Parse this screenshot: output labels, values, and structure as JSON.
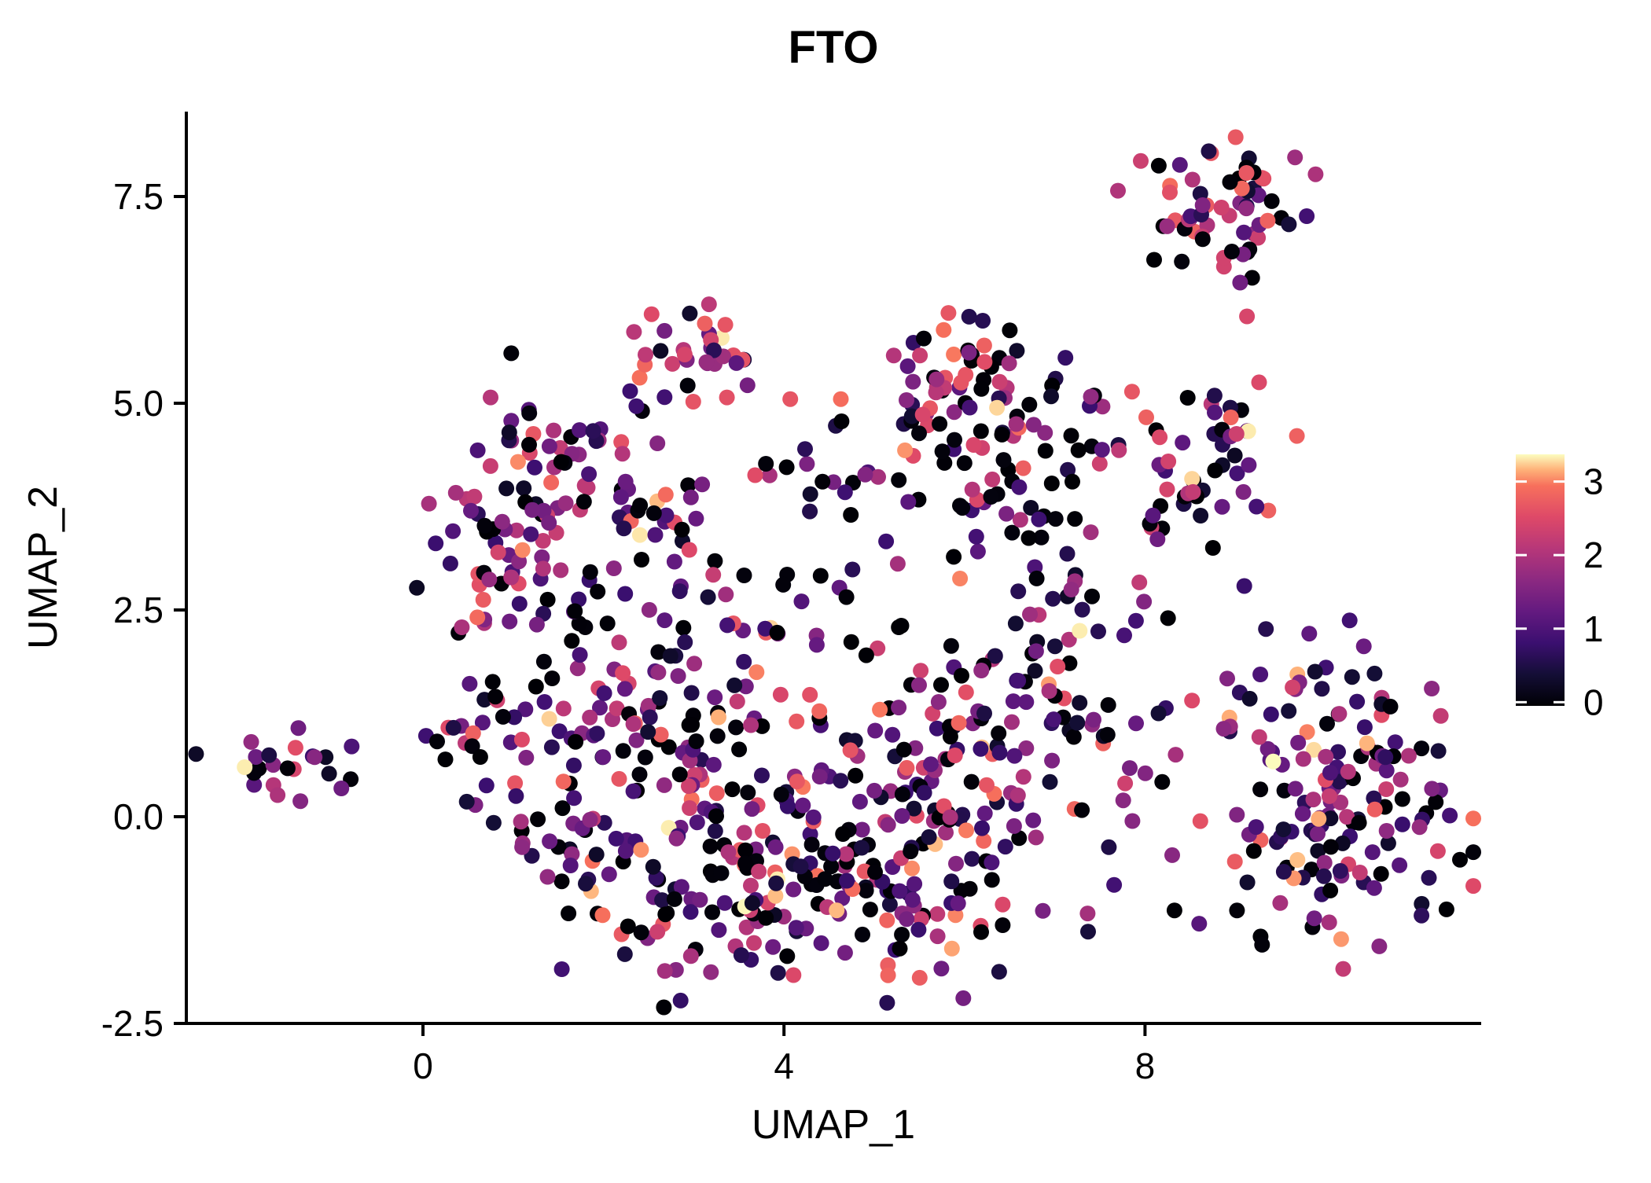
{
  "chart_data": {
    "type": "scatter",
    "title": "FTO",
    "xlabel": "UMAP_1",
    "ylabel": "UMAP_2",
    "x_ticks": [
      0,
      4,
      8
    ],
    "y_ticks": [
      7.5,
      5.0,
      2.5,
      0.0,
      -2.5
    ],
    "x_range": [
      -2.62,
      11.73
    ],
    "y_range": [
      -2.5,
      8.53
    ],
    "grid": false,
    "legend_position": "right",
    "colorbar": {
      "ticks": [
        0,
        1,
        2,
        3
      ],
      "vmin": -0.05,
      "vmax": 3.37
    },
    "colormap": {
      "name": "magma",
      "stops": [
        [
          0.0,
          "#000004"
        ],
        [
          0.125,
          "#140e36"
        ],
        [
          0.25,
          "#3b0f70"
        ],
        [
          0.375,
          "#641a80"
        ],
        [
          0.5,
          "#8c2981"
        ],
        [
          0.625,
          "#b73779"
        ],
        [
          0.75,
          "#de4968"
        ],
        [
          0.875,
          "#f7705c"
        ],
        [
          0.9375,
          "#feb078"
        ],
        [
          1.0,
          "#fcfdbf"
        ]
      ]
    },
    "point_radius_px": 10,
    "seed": 42,
    "value_bins": [
      [
        0,
        0.08
      ],
      [
        0.25,
        1.45
      ],
      [
        1.45,
        2.3
      ],
      [
        2.3,
        2.9
      ],
      [
        2.9,
        3.3
      ]
    ],
    "default_value_weights": [
      0.27,
      0.38,
      0.21,
      0.11,
      0.03
    ],
    "clusters": [
      {
        "name": "far-left-blob",
        "cx": -1.53,
        "cy": 0.64,
        "sx": 0.3,
        "sy": 0.21,
        "n": 20
      },
      {
        "name": "upper-left-core",
        "cx": 1.32,
        "cy": 3.98,
        "sx": 0.57,
        "sy": 0.62,
        "n": 75
      },
      {
        "name": "upper-left-lower",
        "cx": 1.06,
        "cy": 2.8,
        "sx": 0.44,
        "sy": 0.43,
        "n": 30
      },
      {
        "name": "upper-left-bridge",
        "cx": 2.11,
        "cy": 3.32,
        "sx": 0.39,
        "sy": 0.38,
        "n": 15
      },
      {
        "name": "top-band-trail",
        "cx": 2.72,
        "cy": 3.94,
        "sx": 0.7,
        "sy": 0.33,
        "n": 16
      },
      {
        "name": "top-middle",
        "cx": 2.94,
        "cy": 5.52,
        "sx": 0.39,
        "sy": 0.36,
        "n": 32
      },
      {
        "name": "mid-small-clump",
        "cx": 4.59,
        "cy": 4.25,
        "sx": 0.3,
        "sy": 0.24,
        "n": 14
      },
      {
        "name": "top-center-right-core",
        "cx": 6.03,
        "cy": 5.01,
        "sx": 0.52,
        "sy": 0.52,
        "n": 72,
        "weights": [
          0.22,
          0.34,
          0.22,
          0.17,
          0.05
        ]
      },
      {
        "name": "top-center-right-low",
        "cx": 6.36,
        "cy": 3.77,
        "sx": 0.61,
        "sy": 0.48,
        "n": 42
      },
      {
        "name": "top-center-right-east",
        "cx": 7.26,
        "cy": 4.51,
        "sx": 0.22,
        "sy": 0.38,
        "n": 7
      },
      {
        "name": "top-right-core",
        "cx": 8.84,
        "cy": 7.42,
        "sx": 0.48,
        "sy": 0.38,
        "n": 56,
        "weights": [
          0.25,
          0.35,
          0.26,
          0.13,
          0.01
        ]
      },
      {
        "name": "top-right-tail",
        "cx": 9.03,
        "cy": 6.86,
        "sx": 0.17,
        "sy": 0.19,
        "n": 6
      },
      {
        "name": "right-mid-core",
        "cx": 8.77,
        "cy": 4.41,
        "sx": 0.48,
        "sy": 0.48,
        "n": 40,
        "weights": [
          0.2,
          0.34,
          0.22,
          0.2,
          0.04
        ]
      },
      {
        "name": "right-mid-tail",
        "cx": 8.31,
        "cy": 3.7,
        "sx": 0.27,
        "sy": 0.25,
        "n": 12
      },
      {
        "name": "center-left",
        "cx": 2.5,
        "cy": 1.27,
        "sx": 0.7,
        "sy": 0.62,
        "n": 85
      },
      {
        "name": "center-main",
        "cx": 4.02,
        "cy": -0.18,
        "sx": 1.0,
        "sy": 0.71,
        "n": 118
      },
      {
        "name": "center-right",
        "cx": 5.72,
        "cy": 0.51,
        "sx": 0.83,
        "sy": 0.81,
        "n": 100
      },
      {
        "name": "bottom-center-left",
        "cx": 3.2,
        "cy": -1.07,
        "sx": 0.96,
        "sy": 0.5,
        "n": 50
      },
      {
        "name": "bottom-center-right",
        "cx": 5.42,
        "cy": -1.23,
        "sx": 1.05,
        "sy": 0.46,
        "n": 52
      },
      {
        "name": "center-east-lobe",
        "cx": 6.9,
        "cy": 1.53,
        "sx": 0.57,
        "sy": 0.69,
        "n": 46
      },
      {
        "name": "center-east-upper",
        "cx": 7.09,
        "cy": 2.63,
        "sx": 0.35,
        "sy": 0.33,
        "n": 12
      },
      {
        "name": "center-top-bridge",
        "cx": 3.63,
        "cy": 2.37,
        "sx": 1.22,
        "sy": 0.36,
        "n": 30
      },
      {
        "name": "left-arm",
        "cx": 0.89,
        "cy": 0.37,
        "sx": 0.39,
        "sy": 0.6,
        "n": 26
      },
      {
        "name": "left-small-clump",
        "cx": 0.54,
        "cy": 1.27,
        "sx": 0.26,
        "sy": 0.2,
        "n": 12
      },
      {
        "name": "center-to-right-gap",
        "cx": 7.9,
        "cy": 0.47,
        "sx": 0.39,
        "sy": 0.55,
        "n": 10
      },
      {
        "name": "bottom-left-arc",
        "cx": 2.02,
        "cy": -0.48,
        "sx": 0.48,
        "sy": 0.33,
        "n": 25
      },
      {
        "name": "bottom-right-core",
        "cx": 9.95,
        "cy": 0.77,
        "sx": 0.52,
        "sy": 0.65,
        "n": 70
      },
      {
        "name": "bottom-right-east",
        "cx": 10.66,
        "cy": -0.03,
        "sx": 0.57,
        "sy": 0.6,
        "n": 58
      },
      {
        "name": "bottom-right-south",
        "cx": 9.62,
        "cy": -0.47,
        "sx": 0.48,
        "sy": 0.46,
        "n": 34
      }
    ],
    "extra_points": [
      [
        -1.2,
        0.72,
        1.6
      ],
      [
        -1.04,
        0.52,
        0.3
      ],
      [
        -0.79,
        0.85,
        1.0
      ],
      [
        3.31,
        5.79,
        3.25
      ],
      [
        3.35,
        5.95,
        2.6
      ],
      [
        3.44,
        5.58,
        2.55
      ],
      [
        4.07,
        5.05,
        2.6
      ],
      [
        4.63,
        5.05,
        2.85
      ],
      [
        3.68,
        4.13,
        2.5
      ],
      [
        4.74,
        3.65,
        0.02
      ],
      [
        7.4,
        5.08,
        1.7
      ],
      [
        7.53,
        4.96,
        1.8
      ],
      [
        7.7,
        7.57,
        2.0
      ],
      [
        9.13,
        6.05,
        2.4
      ],
      [
        9.1,
        2.79,
        0.8
      ],
      [
        9.34,
        2.27,
        0.6
      ],
      [
        7.9,
        2.37,
        0.9
      ],
      [
        5.95,
        2.88,
        2.95
      ],
      [
        8.34,
        0.75,
        1.9
      ],
      [
        8.15,
        1.25,
        0.4
      ]
    ]
  }
}
